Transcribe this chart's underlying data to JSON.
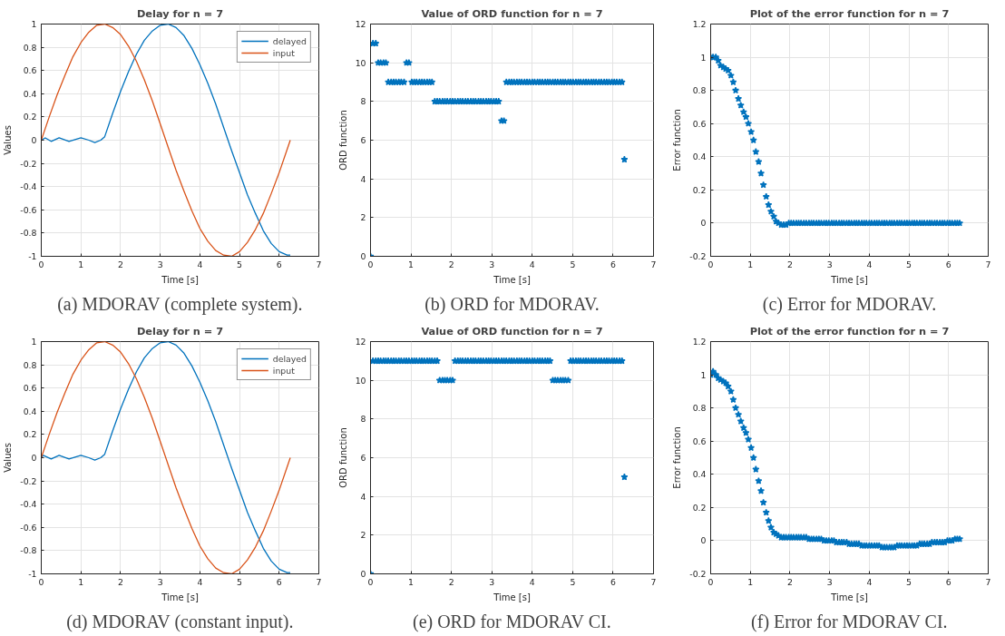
{
  "chart_data": [
    {
      "type": "line",
      "title": "Delay for n = 7",
      "xlabel": "Time [s]",
      "ylabel": "Values",
      "xlim": [
        0,
        7
      ],
      "xticks": [
        0,
        1,
        2,
        3,
        4,
        5,
        6,
        7
      ],
      "ylim": [
        -1,
        1
      ],
      "yticks": [
        -1,
        -0.8,
        -0.6,
        -0.4,
        -0.2,
        0,
        0.2,
        0.4,
        0.6,
        0.8,
        1
      ],
      "grid": true,
      "legend": "top right",
      "line_style": "solid",
      "annotations": [
        "(a) MDORAV (complete system)."
      ],
      "series": [
        {
          "name": "delayed",
          "color": "#0072bd",
          "x": [
            0,
            0.1,
            0.25,
            0.45,
            0.7,
            1.0,
            1.2,
            1.35,
            1.5,
            1.6,
            1.8,
            2.0,
            2.2,
            2.4,
            2.6,
            2.8,
            3.0,
            3.2,
            3.4,
            3.6,
            3.8,
            4.0,
            4.2,
            4.4,
            4.6,
            4.8,
            5.0,
            5.2,
            5.4,
            5.6,
            5.8,
            6.0,
            6.2,
            6.28
          ],
          "values": [
            0,
            0.02,
            -0.01,
            0.02,
            -0.01,
            0.02,
            0.0,
            -0.02,
            0.0,
            0.03,
            0.23,
            0.42,
            0.59,
            0.74,
            0.86,
            0.94,
            0.99,
            1.0,
            0.97,
            0.9,
            0.79,
            0.65,
            0.49,
            0.31,
            0.11,
            -0.09,
            -0.28,
            -0.47,
            -0.63,
            -0.78,
            -0.89,
            -0.96,
            -0.99,
            -0.99
          ]
        },
        {
          "name": "input",
          "color": "#d95319",
          "x": [
            0,
            0.2,
            0.4,
            0.6,
            0.8,
            1.0,
            1.2,
            1.4,
            1.6,
            1.8,
            2.0,
            2.2,
            2.4,
            2.6,
            2.8,
            3.0,
            3.2,
            3.4,
            3.6,
            3.8,
            4.0,
            4.2,
            4.4,
            4.6,
            4.8,
            5.0,
            5.2,
            5.4,
            5.6,
            5.8,
            6.0,
            6.2,
            6.28
          ],
          "values": [
            0,
            0.2,
            0.39,
            0.56,
            0.72,
            0.84,
            0.93,
            0.99,
            1.0,
            0.97,
            0.91,
            0.81,
            0.68,
            0.52,
            0.34,
            0.14,
            -0.06,
            -0.26,
            -0.44,
            -0.61,
            -0.76,
            -0.87,
            -0.95,
            -0.99,
            -1.0,
            -0.96,
            -0.88,
            -0.77,
            -0.63,
            -0.46,
            -0.28,
            -0.08,
            0
          ]
        }
      ]
    },
    {
      "type": "scatter",
      "title": "Value of ORD function for n = 7",
      "xlabel": "Time [s]",
      "ylabel": "ORD function",
      "xlim": [
        0,
        7
      ],
      "xticks": [
        0,
        1,
        2,
        3,
        4,
        5,
        6,
        7
      ],
      "ylim": [
        0,
        12
      ],
      "yticks": [
        0,
        2,
        4,
        6,
        8,
        10,
        12
      ],
      "grid": true,
      "marker": "star",
      "annotations": [
        "(b) ORD for MDORAV."
      ],
      "series": [
        {
          "color": "#0072bd",
          "x": [
            0,
            0.06,
            0.13,
            0.19,
            0.25,
            0.32,
            0.38,
            0.44,
            0.51,
            0.57,
            0.63,
            0.7,
            0.76,
            0.83,
            0.89,
            0.95,
            1.02,
            1.08,
            1.14,
            1.21,
            1.27,
            1.33,
            1.4,
            1.46,
            1.52,
            1.59,
            1.65,
            1.71,
            1.78,
            1.84,
            1.9,
            1.97,
            2.03,
            2.09,
            2.16,
            2.22,
            2.28,
            2.35,
            2.41,
            2.48,
            2.54,
            2.6,
            2.67,
            2.73,
            2.79,
            2.86,
            2.92,
            2.98,
            3.05,
            3.11,
            3.17,
            3.24,
            3.3,
            3.36,
            3.43,
            3.49,
            3.55,
            3.62,
            3.68,
            3.74,
            3.81,
            3.87,
            3.93,
            4.0,
            4.06,
            4.13,
            4.19,
            4.25,
            4.32,
            4.38,
            4.44,
            4.51,
            4.57,
            4.63,
            4.7,
            4.76,
            4.82,
            4.89,
            4.95,
            5.01,
            5.08,
            5.14,
            5.2,
            5.27,
            5.33,
            5.39,
            5.46,
            5.52,
            5.58,
            5.65,
            5.71,
            5.78,
            5.84,
            5.9,
            5.97,
            6.03,
            6.09,
            6.16,
            6.22,
            6.28
          ],
          "values": [
            0,
            11,
            11,
            10,
            10,
            10,
            10,
            9,
            9,
            9,
            9,
            9,
            9,
            9,
            10,
            10,
            9,
            9,
            9,
            9,
            9,
            9,
            9,
            9,
            9,
            8,
            8,
            8,
            8,
            8,
            8,
            8,
            8,
            8,
            8,
            8,
            8,
            8,
            8,
            8,
            8,
            8,
            8,
            8,
            8,
            8,
            8,
            8,
            8,
            8,
            8,
            7,
            7,
            9,
            9,
            9,
            9,
            9,
            9,
            9,
            9,
            9,
            9,
            9,
            9,
            9,
            9,
            9,
            9,
            9,
            9,
            9,
            9,
            9,
            9,
            9,
            9,
            9,
            9,
            9,
            9,
            9,
            9,
            9,
            9,
            9,
            9,
            9,
            9,
            9,
            9,
            9,
            9,
            9,
            9,
            9,
            9,
            9,
            9,
            5
          ]
        }
      ]
    },
    {
      "type": "scatter",
      "title": "Plot of the error function for n = 7",
      "xlabel": "Time [s]",
      "ylabel": "Error function",
      "xlim": [
        0,
        7
      ],
      "xticks": [
        0,
        1,
        2,
        3,
        4,
        5,
        6,
        7
      ],
      "ylim": [
        -0.2,
        1.2
      ],
      "yticks": [
        -0.2,
        0,
        0.2,
        0.4,
        0.6,
        0.8,
        1,
        1.2
      ],
      "grid": true,
      "marker": "star",
      "annotations": [
        "(c) Error for MDORAV."
      ],
      "series": [
        {
          "color": "#0072bd",
          "x": [
            0,
            0.06,
            0.13,
            0.19,
            0.25,
            0.32,
            0.38,
            0.44,
            0.51,
            0.57,
            0.63,
            0.7,
            0.76,
            0.83,
            0.89,
            0.95,
            1.02,
            1.08,
            1.14,
            1.21,
            1.27,
            1.33,
            1.4,
            1.46,
            1.52,
            1.59,
            1.65,
            1.71,
            1.78,
            1.84,
            1.9,
            1.97,
            2.03,
            2.09,
            2.16,
            2.22,
            2.28,
            2.35,
            2.41,
            2.48,
            2.54,
            2.6,
            2.67,
            2.73,
            2.79,
            2.86,
            2.92,
            2.98,
            3.05,
            3.11,
            3.17,
            3.24,
            3.3,
            3.36,
            3.43,
            3.49,
            3.55,
            3.62,
            3.68,
            3.74,
            3.81,
            3.87,
            3.93,
            4.0,
            4.06,
            4.13,
            4.19,
            4.25,
            4.32,
            4.38,
            4.44,
            4.51,
            4.57,
            4.63,
            4.7,
            4.76,
            4.82,
            4.89,
            4.95,
            5.01,
            5.08,
            5.14,
            5.2,
            5.27,
            5.33,
            5.39,
            5.46,
            5.52,
            5.58,
            5.65,
            5.71,
            5.78,
            5.84,
            5.9,
            5.97,
            6.03,
            6.09,
            6.16,
            6.22,
            6.28
          ],
          "values": [
            1.0,
            1.0,
            1.0,
            0.98,
            0.95,
            0.94,
            0.93,
            0.92,
            0.89,
            0.85,
            0.8,
            0.75,
            0.71,
            0.67,
            0.64,
            0.6,
            0.55,
            0.5,
            0.43,
            0.37,
            0.3,
            0.23,
            0.16,
            0.11,
            0.07,
            0.04,
            0.01,
            0,
            -0.01,
            -0.01,
            -0.01,
            0,
            0,
            0,
            0,
            0,
            0,
            0,
            0,
            0,
            0,
            0,
            0,
            0,
            0,
            0,
            0,
            0,
            0,
            0,
            0,
            0,
            0,
            0,
            0,
            0,
            0,
            0,
            0,
            0,
            0,
            0,
            0,
            0,
            0,
            0,
            0,
            0,
            0,
            0,
            0,
            0,
            0,
            0,
            0,
            0,
            0,
            0,
            0,
            0,
            0,
            0,
            0,
            0,
            0,
            0,
            0,
            0,
            0,
            0,
            0,
            0,
            0,
            0,
            0,
            0,
            0,
            0,
            0,
            0
          ]
        }
      ]
    },
    {
      "type": "line",
      "title": "Delay for n = 7",
      "xlabel": "Time [s]",
      "ylabel": "Values",
      "xlim": [
        0,
        7
      ],
      "xticks": [
        0,
        1,
        2,
        3,
        4,
        5,
        6,
        7
      ],
      "ylim": [
        -1,
        1
      ],
      "yticks": [
        -1,
        -0.8,
        -0.6,
        -0.4,
        -0.2,
        0,
        0.2,
        0.4,
        0.6,
        0.8,
        1
      ],
      "grid": true,
      "legend": "top right",
      "line_style": "solid",
      "annotations": [
        "(d) MDORAV (constant input)."
      ],
      "series": [
        {
          "name": "delayed",
          "color": "#0072bd",
          "x": [
            0,
            0.05,
            0.25,
            0.45,
            0.7,
            1.0,
            1.2,
            1.35,
            1.5,
            1.6,
            1.8,
            2.0,
            2.2,
            2.4,
            2.6,
            2.8,
            3.0,
            3.2,
            3.4,
            3.6,
            3.8,
            4.0,
            4.2,
            4.4,
            4.6,
            4.8,
            5.0,
            5.2,
            5.4,
            5.6,
            5.8,
            6.0,
            6.2,
            6.28
          ],
          "values": [
            0,
            0.02,
            -0.01,
            0.02,
            -0.01,
            0.02,
            0.0,
            -0.02,
            0.0,
            0.03,
            0.23,
            0.42,
            0.59,
            0.74,
            0.86,
            0.94,
            0.99,
            1.0,
            0.97,
            0.9,
            0.79,
            0.65,
            0.49,
            0.31,
            0.11,
            -0.09,
            -0.28,
            -0.47,
            -0.63,
            -0.78,
            -0.89,
            -0.96,
            -0.99,
            -0.99
          ]
        },
        {
          "name": "input",
          "color": "#d95319",
          "x": [
            0,
            0.2,
            0.4,
            0.6,
            0.8,
            1.0,
            1.2,
            1.4,
            1.6,
            1.8,
            2.0,
            2.2,
            2.4,
            2.6,
            2.8,
            3.0,
            3.2,
            3.4,
            3.6,
            3.8,
            4.0,
            4.2,
            4.4,
            4.6,
            4.8,
            5.0,
            5.2,
            5.4,
            5.6,
            5.8,
            6.0,
            6.2,
            6.28
          ],
          "values": [
            0,
            0.2,
            0.39,
            0.56,
            0.72,
            0.84,
            0.93,
            0.99,
            1.0,
            0.97,
            0.91,
            0.81,
            0.68,
            0.52,
            0.34,
            0.14,
            -0.06,
            -0.26,
            -0.44,
            -0.61,
            -0.76,
            -0.87,
            -0.95,
            -0.99,
            -1.0,
            -0.96,
            -0.88,
            -0.77,
            -0.63,
            -0.46,
            -0.28,
            -0.08,
            0
          ]
        }
      ]
    },
    {
      "type": "scatter",
      "title": "Value of ORD function for n = 7",
      "xlabel": "Time [s]",
      "ylabel": "ORD function",
      "xlim": [
        0,
        7
      ],
      "xticks": [
        0,
        1,
        2,
        3,
        4,
        5,
        6,
        7
      ],
      "ylim": [
        0,
        12
      ],
      "yticks": [
        0,
        2,
        4,
        6,
        8,
        10,
        12
      ],
      "grid": true,
      "marker": "star",
      "annotations": [
        "(e) ORD for MDORAV CI."
      ],
      "series": [
        {
          "color": "#0072bd",
          "x": [
            0,
            0.06,
            0.13,
            0.19,
            0.25,
            0.32,
            0.38,
            0.44,
            0.51,
            0.57,
            0.63,
            0.7,
            0.76,
            0.83,
            0.89,
            0.95,
            1.02,
            1.08,
            1.14,
            1.21,
            1.27,
            1.33,
            1.4,
            1.46,
            1.52,
            1.59,
            1.65,
            1.71,
            1.78,
            1.84,
            1.9,
            1.97,
            2.03,
            2.09,
            2.16,
            2.22,
            2.28,
            2.35,
            2.41,
            2.48,
            2.54,
            2.6,
            2.67,
            2.73,
            2.79,
            2.86,
            2.92,
            2.98,
            3.05,
            3.11,
            3.17,
            3.24,
            3.3,
            3.36,
            3.43,
            3.49,
            3.55,
            3.62,
            3.68,
            3.74,
            3.81,
            3.87,
            3.93,
            4.0,
            4.06,
            4.13,
            4.19,
            4.25,
            4.32,
            4.38,
            4.44,
            4.51,
            4.57,
            4.63,
            4.7,
            4.76,
            4.82,
            4.89,
            4.95,
            5.01,
            5.08,
            5.14,
            5.2,
            5.27,
            5.33,
            5.39,
            5.46,
            5.52,
            5.58,
            5.65,
            5.71,
            5.78,
            5.84,
            5.9,
            5.97,
            6.03,
            6.09,
            6.16,
            6.22,
            6.28
          ],
          "values": [
            0,
            11,
            11,
            11,
            11,
            11,
            11,
            11,
            11,
            11,
            11,
            11,
            11,
            11,
            11,
            11,
            11,
            11,
            11,
            11,
            11,
            11,
            11,
            11,
            11,
            11,
            11,
            10,
            10,
            10,
            10,
            10,
            10,
            11,
            11,
            11,
            11,
            11,
            11,
            11,
            11,
            11,
            11,
            11,
            11,
            11,
            11,
            11,
            11,
            11,
            11,
            11,
            11,
            11,
            11,
            11,
            11,
            11,
            11,
            11,
            11,
            11,
            11,
            11,
            11,
            11,
            11,
            11,
            11,
            11,
            11,
            10,
            10,
            10,
            10,
            10,
            10,
            10,
            11,
            11,
            11,
            11,
            11,
            11,
            11,
            11,
            11,
            11,
            11,
            11,
            11,
            11,
            11,
            11,
            11,
            11,
            11,
            11,
            11,
            5
          ]
        }
      ]
    },
    {
      "type": "scatter",
      "title": "Plot of the error function for n = 7",
      "xlabel": "Time [s]",
      "ylabel": "Error function",
      "xlim": [
        0,
        7
      ],
      "xticks": [
        0,
        1,
        2,
        3,
        4,
        5,
        6,
        7
      ],
      "ylim": [
        -0.2,
        1.2
      ],
      "yticks": [
        -0.2,
        0,
        0.2,
        0.4,
        0.6,
        0.8,
        1,
        1.2
      ],
      "grid": true,
      "marker": "star",
      "annotations": [
        "(f) Error for MDORAV CI."
      ],
      "series": [
        {
          "color": "#0072bd",
          "x": [
            0,
            0.06,
            0.13,
            0.19,
            0.25,
            0.32,
            0.38,
            0.44,
            0.51,
            0.57,
            0.63,
            0.7,
            0.76,
            0.83,
            0.89,
            0.95,
            1.02,
            1.08,
            1.14,
            1.21,
            1.27,
            1.33,
            1.4,
            1.46,
            1.52,
            1.59,
            1.65,
            1.71,
            1.78,
            1.84,
            1.9,
            1.97,
            2.03,
            2.09,
            2.16,
            2.22,
            2.28,
            2.35,
            2.41,
            2.48,
            2.54,
            2.6,
            2.67,
            2.73,
            2.79,
            2.86,
            2.92,
            2.98,
            3.05,
            3.11,
            3.17,
            3.24,
            3.3,
            3.36,
            3.43,
            3.49,
            3.55,
            3.62,
            3.68,
            3.74,
            3.81,
            3.87,
            3.93,
            4.0,
            4.06,
            4.13,
            4.19,
            4.25,
            4.32,
            4.38,
            4.44,
            4.51,
            4.57,
            4.63,
            4.7,
            4.76,
            4.82,
            4.89,
            4.95,
            5.01,
            5.08,
            5.14,
            5.2,
            5.27,
            5.33,
            5.39,
            5.46,
            5.52,
            5.58,
            5.65,
            5.71,
            5.78,
            5.84,
            5.9,
            5.97,
            6.03,
            6.09,
            6.16,
            6.22,
            6.28
          ],
          "values": [
            1.0,
            1.02,
            1.0,
            0.98,
            0.97,
            0.96,
            0.95,
            0.93,
            0.9,
            0.85,
            0.8,
            0.76,
            0.72,
            0.68,
            0.65,
            0.61,
            0.56,
            0.5,
            0.43,
            0.36,
            0.3,
            0.23,
            0.17,
            0.12,
            0.08,
            0.05,
            0.04,
            0.03,
            0.02,
            0.02,
            0.02,
            0.02,
            0.02,
            0.02,
            0.02,
            0.02,
            0.02,
            0.02,
            0.02,
            0.01,
            0.01,
            0.01,
            0.01,
            0.01,
            0.01,
            0,
            0,
            0,
            0,
            0,
            -0.01,
            -0.01,
            -0.01,
            -0.01,
            -0.01,
            -0.02,
            -0.02,
            -0.02,
            -0.02,
            -0.02,
            -0.03,
            -0.03,
            -0.03,
            -0.03,
            -0.03,
            -0.03,
            -0.03,
            -0.03,
            -0.04,
            -0.04,
            -0.04,
            -0.04,
            -0.04,
            -0.04,
            -0.03,
            -0.03,
            -0.03,
            -0.03,
            -0.03,
            -0.03,
            -0.03,
            -0.03,
            -0.03,
            -0.02,
            -0.02,
            -0.02,
            -0.02,
            -0.02,
            -0.01,
            -0.01,
            -0.01,
            -0.01,
            -0.01,
            -0.01,
            0,
            0,
            0,
            0.01,
            0.01,
            0.01
          ]
        }
      ]
    }
  ]
}
